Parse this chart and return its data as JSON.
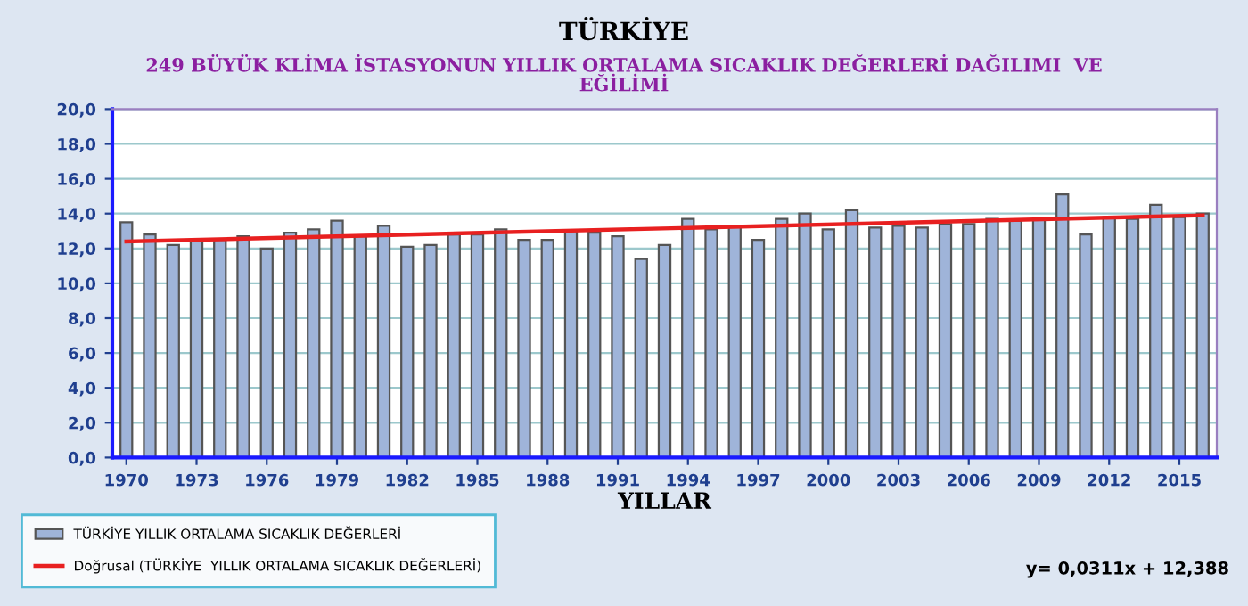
{
  "chart_data": {
    "type": "bar",
    "title": "TÜRKİYE",
    "subtitle": "249 BÜYÜK KLİMA İSTASYONUN YILLIK ORTALAMA SICAKLIK DEĞERLERİ DAĞILIMI  VE\nEĞİLİMİ",
    "xlabel": "YILLAR",
    "x": [
      1970,
      1971,
      1972,
      1973,
      1974,
      1975,
      1976,
      1977,
      1978,
      1979,
      1980,
      1981,
      1982,
      1983,
      1984,
      1985,
      1986,
      1987,
      1988,
      1989,
      1990,
      1991,
      1992,
      1993,
      1994,
      1995,
      1996,
      1997,
      1998,
      1999,
      2000,
      2001,
      2002,
      2003,
      2004,
      2005,
      2006,
      2007,
      2008,
      2009,
      2010,
      2011,
      2012,
      2013,
      2014,
      2015,
      2016
    ],
    "series": [
      {
        "name": "TÜRKİYE YILLIK ORTALAMA SICAKLIK DEĞERLERİ",
        "color": "#9fb4d9",
        "values": [
          13.5,
          12.8,
          12.2,
          12.5,
          12.5,
          12.7,
          12.0,
          12.9,
          13.1,
          13.6,
          12.7,
          13.3,
          12.1,
          12.2,
          12.8,
          12.8,
          13.1,
          12.5,
          12.5,
          13.0,
          12.9,
          12.7,
          11.4,
          12.2,
          13.7,
          13.1,
          13.3,
          12.5,
          13.7,
          14.0,
          13.1,
          14.2,
          13.2,
          13.3,
          13.2,
          13.4,
          13.4,
          13.7,
          13.6,
          13.7,
          15.1,
          12.8,
          13.8,
          13.7,
          14.5,
          13.8,
          14.0
        ]
      },
      {
        "name": "Doğrusal (TÜRKİYE  YILLIK ORTALAMA SICAKLIK DEĞERLERİ)",
        "type": "line",
        "color": "#e82020",
        "x": [
          1970,
          2016
        ],
        "values": [
          12.4,
          13.9
        ]
      }
    ],
    "xlim": [
      1969.4,
      2016.6
    ],
    "xticks": [
      1970,
      1973,
      1976,
      1979,
      1982,
      1985,
      1988,
      1991,
      1994,
      1997,
      2000,
      2003,
      2006,
      2009,
      2012,
      2015
    ],
    "ylim": [
      0,
      20
    ],
    "yticks": [
      {
        "value": 0,
        "label": "0,0"
      },
      {
        "value": 2,
        "label": "2,0"
      },
      {
        "value": 4,
        "label": "4,0"
      },
      {
        "value": 6,
        "label": "6,0"
      },
      {
        "value": 8,
        "label": "8,0"
      },
      {
        "value": 10,
        "label": "10,0"
      },
      {
        "value": 12,
        "label": "12,0"
      },
      {
        "value": 14,
        "label": "14,0"
      },
      {
        "value": 16,
        "label": "16,0"
      },
      {
        "value": 18,
        "label": "18,0"
      },
      {
        "value": 20,
        "label": "20,0"
      }
    ],
    "grid": "y",
    "legend": "bottom left",
    "line_style": "solid",
    "marker": "none",
    "annotations": [
      "y= 0,0311x + 12,388"
    ]
  }
}
